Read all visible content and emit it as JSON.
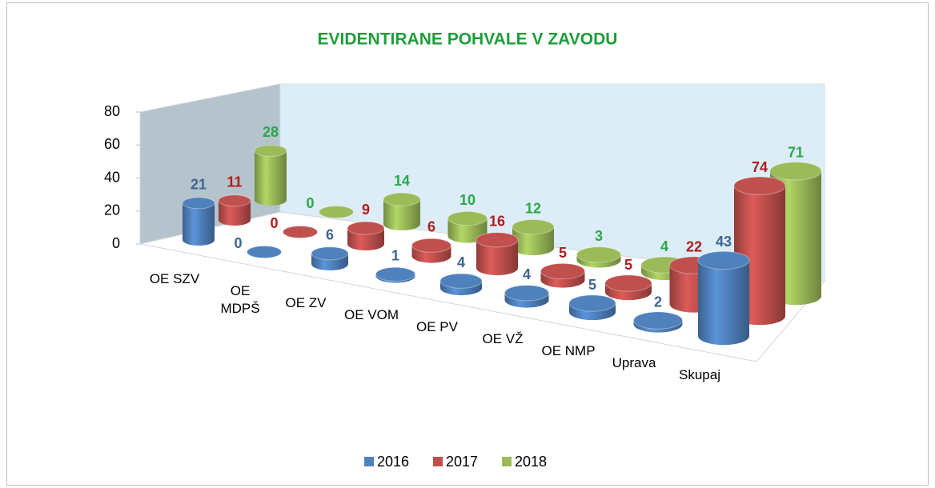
{
  "chart_data": {
    "type": "bar3d",
    "title": "EVIDENTIRANE POHVALE V ZAVODU",
    "categories": [
      "OE SZV",
      "OE MDPŠ",
      "OE ZV",
      "OE VOM",
      "OE PV",
      "OE VŽ",
      "OE NMP",
      "Uprava",
      "Skupaj"
    ],
    "series": [
      {
        "name": "2016",
        "color": "#4f81bd",
        "label_color": "#3f6592",
        "values": [
          21,
          0,
          6,
          1,
          4,
          4,
          5,
          2,
          43
        ]
      },
      {
        "name": "2017",
        "color": "#c0504d",
        "label_color": "#b01c1c",
        "values": [
          11,
          0,
          9,
          6,
          16,
          5,
          5,
          22,
          74
        ]
      },
      {
        "name": "2018",
        "color": "#9bbb59",
        "label_color": "#2aa84a",
        "values": [
          28,
          0,
          14,
          10,
          12,
          3,
          4,
          0,
          71
        ]
      }
    ],
    "ylim": [
      0,
      80
    ],
    "yticks": [
      0,
      20,
      40,
      60,
      80
    ],
    "legend": "bottom"
  }
}
